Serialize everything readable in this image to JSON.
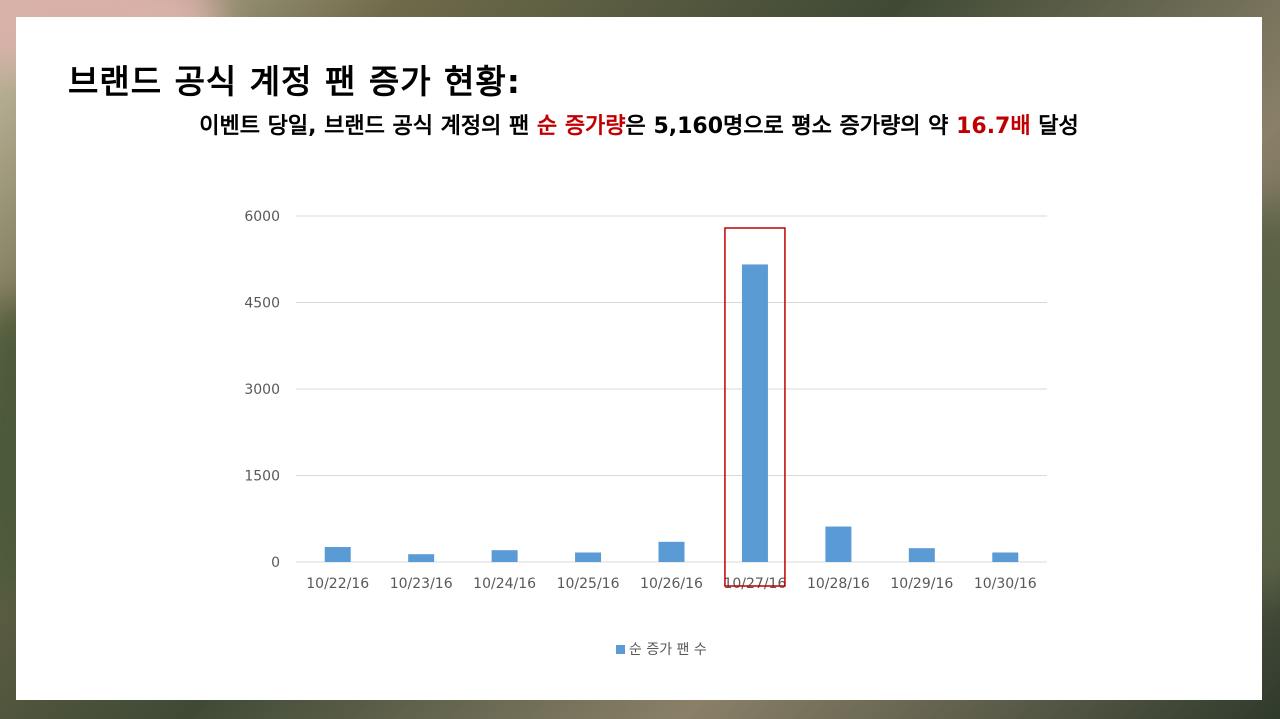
{
  "slide": {
    "title": "브랜드 공식 계정 팬 증가 현황:",
    "subtitle_parts": {
      "p1": "이벤트 당일, 브랜드 공식 계정의 팬 ",
      "h1": "순 증가량",
      "p2": "은 5,160명으로 평소 증가량의 약 ",
      "h2": "16.7배",
      "p3": " 달성"
    }
  },
  "colors": {
    "bar": "#5b9bd5",
    "highlight": "#c00000",
    "grid": "#d9d9d9",
    "text": "#595959"
  },
  "chart_data": {
    "type": "bar",
    "categories": [
      "10/22/16",
      "10/23/16",
      "10/24/16",
      "10/25/16",
      "10/26/16",
      "10/27/16",
      "10/28/16",
      "10/29/16",
      "10/30/16"
    ],
    "series": [
      {
        "name": "순 증가 팬 수",
        "values": [
          260,
          135,
          205,
          165,
          350,
          5160,
          615,
          240,
          165
        ]
      }
    ],
    "ylim": [
      0,
      6000
    ],
    "yticks": [
      0,
      1500,
      3000,
      4500,
      6000
    ],
    "grid": true,
    "legend": "bottom",
    "highlight_category": "10/27/16"
  }
}
